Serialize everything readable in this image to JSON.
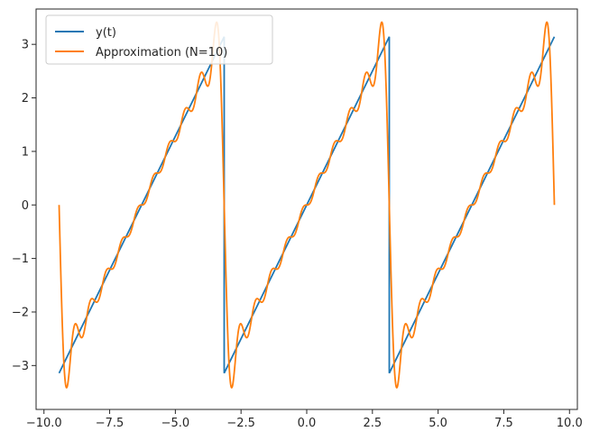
{
  "chart_data": {
    "type": "line",
    "title": "",
    "xlabel": "",
    "ylabel": "",
    "xlim": [
      -10.3,
      10.3
    ],
    "ylim": [
      -3.82,
      3.66
    ],
    "xticks": [
      -10.0,
      -7.5,
      -5.0,
      -2.5,
      0.0,
      2.5,
      5.0,
      7.5,
      10.0
    ],
    "xtick_labels": [
      "−10.0",
      "−7.5",
      "−5.0",
      "−2.5",
      "0.0",
      "2.5",
      "5.0",
      "7.5",
      "10.0"
    ],
    "yticks": [
      -3,
      -2,
      -1,
      0,
      1,
      2,
      3
    ],
    "ytick_labels": [
      "−3",
      "−2",
      "−1",
      "0",
      "1",
      "2",
      "3"
    ],
    "grid": false,
    "legend_position": "top-left",
    "x_range": [
      -9.4248,
      9.4248
    ],
    "series": [
      {
        "name": "y(t)",
        "color": "#1f77b4",
        "function": "sawtooth with period 2π, y(t) = t − 2π·round(t / 2π), ranging −π to π",
        "breakpoints": [
          -9.4248,
          -3.1416,
          3.1416,
          9.4248
        ]
      },
      {
        "name": "Approximation (N=10)",
        "color": "#ff7f0e",
        "function": "Fourier partial sum: Σ_{n=1}^{10} 2·(−1)^(n+1)·sin(n·t)/n"
      }
    ]
  }
}
